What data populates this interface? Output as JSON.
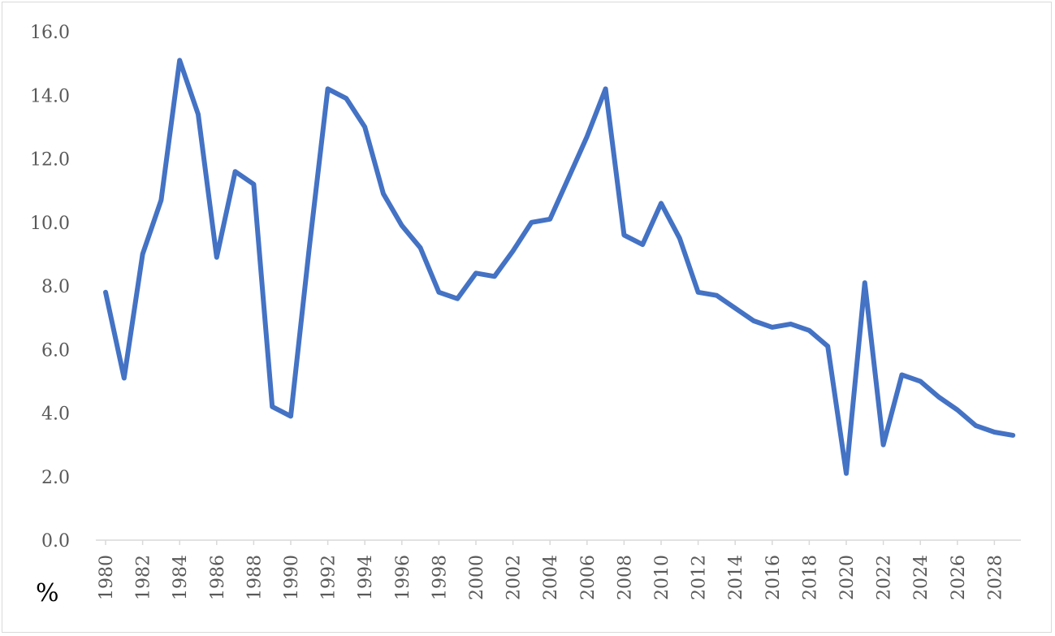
{
  "chart_data": {
    "type": "line",
    "title": "",
    "xlabel": "",
    "ylabel": "%",
    "ylim": [
      0,
      16
    ],
    "y_ticks": [
      "0.0",
      "2.0",
      "4.0",
      "6.0",
      "8.0",
      "10.0",
      "12.0",
      "14.0",
      "16.0"
    ],
    "x_tick_labels": [
      "1980",
      "1982",
      "1984",
      "1986",
      "1988",
      "1990",
      "1992",
      "1994",
      "1996",
      "1998",
      "2000",
      "2002",
      "2004",
      "2006",
      "2008",
      "2010",
      "2012",
      "2014",
      "2016",
      "2018",
      "2020",
      "2022",
      "2024",
      "2026",
      "2028"
    ],
    "grid": false,
    "legend": "none",
    "series": [
      {
        "color": "#4472C4",
        "x": [
          1980,
          1981,
          1982,
          1983,
          1984,
          1985,
          1986,
          1987,
          1988,
          1989,
          1990,
          1991,
          1992,
          1993,
          1994,
          1995,
          1996,
          1997,
          1998,
          1999,
          2000,
          2001,
          2002,
          2003,
          2004,
          2005,
          2006,
          2007,
          2008,
          2009,
          2010,
          2011,
          2012,
          2013,
          2014,
          2015,
          2016,
          2017,
          2018,
          2019,
          2020,
          2021,
          2022,
          2023,
          2024,
          2025,
          2026,
          2027,
          2028,
          2029
        ],
        "values": [
          7.8,
          5.1,
          9.0,
          10.7,
          15.1,
          13.4,
          8.9,
          11.6,
          11.2,
          4.2,
          3.9,
          9.2,
          14.2,
          13.9,
          13.0,
          10.9,
          9.9,
          9.2,
          7.8,
          7.6,
          8.4,
          8.3,
          9.1,
          10.0,
          10.1,
          11.4,
          12.7,
          14.2,
          9.6,
          9.3,
          10.6,
          9.5,
          7.8,
          7.7,
          7.3,
          6.9,
          6.7,
          6.8,
          6.6,
          6.1,
          2.1,
          8.1,
          3.0,
          5.2,
          5.0,
          4.5,
          4.1,
          3.6,
          3.4,
          3.3
        ]
      }
    ]
  }
}
